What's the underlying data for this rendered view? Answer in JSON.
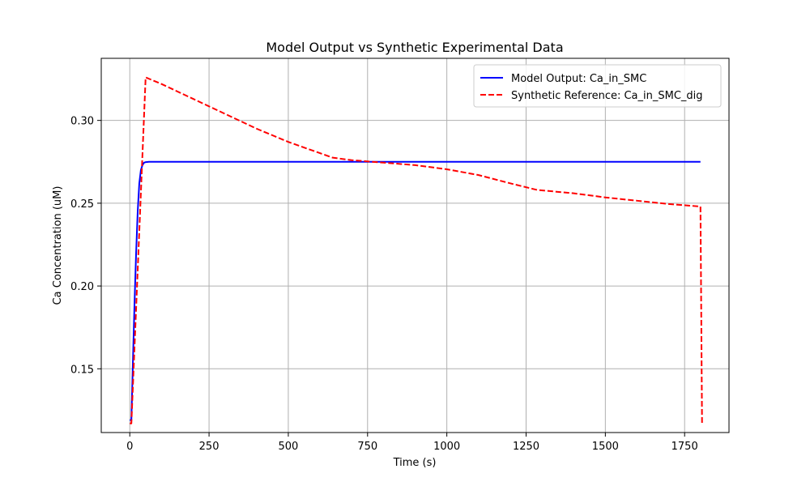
{
  "chart_data": {
    "type": "line",
    "title": "Model Output vs Synthetic Experimental Data",
    "xlabel": "Time (s)",
    "ylabel": "Ca Concentration (uM)",
    "xlim": [
      -90,
      1890
    ],
    "ylim": [
      0.1115,
      0.3375
    ],
    "xticks": [
      0,
      250,
      500,
      750,
      1000,
      1250,
      1500,
      1750
    ],
    "xtick_labels": [
      "0",
      "250",
      "500",
      "750",
      "1000",
      "1250",
      "1500",
      "1750"
    ],
    "yticks": [
      0.15,
      0.2,
      0.25,
      0.3
    ],
    "ytick_labels": [
      "0.15",
      "0.20",
      "0.25",
      "0.30"
    ],
    "grid": true,
    "legend_position": "top-right",
    "series": [
      {
        "name": "Model Output: Ca_in_SMC",
        "color": "#0000ff",
        "style": "solid",
        "x": [
          0,
          5,
          10,
          15,
          20,
          25,
          30,
          35,
          40,
          45,
          50,
          55,
          60,
          70,
          80,
          100,
          150,
          300,
          600,
          900,
          1200,
          1500,
          1800
        ],
        "y": [
          0.119,
          0.119,
          0.155,
          0.19,
          0.22,
          0.245,
          0.262,
          0.27,
          0.273,
          0.2745,
          0.2748,
          0.2749,
          0.275,
          0.275,
          0.275,
          0.275,
          0.275,
          0.275,
          0.275,
          0.275,
          0.275,
          0.275,
          0.275
        ]
      },
      {
        "name": "Synthetic Reference: Ca_in_SMC_dig",
        "color": "#ff0000",
        "style": "dashed",
        "x": [
          0,
          5,
          50,
          100,
          200,
          300,
          400,
          500,
          640,
          700,
          800,
          900,
          1000,
          1100,
          1200,
          1285,
          1400,
          1500,
          1600,
          1700,
          1800,
          1805
        ],
        "y": [
          0.117,
          0.117,
          0.326,
          0.322,
          0.313,
          0.304,
          0.295,
          0.287,
          0.2775,
          0.276,
          0.2745,
          0.273,
          0.2705,
          0.267,
          0.262,
          0.258,
          0.256,
          0.2535,
          0.2515,
          0.2495,
          0.248,
          0.117
        ]
      }
    ]
  }
}
